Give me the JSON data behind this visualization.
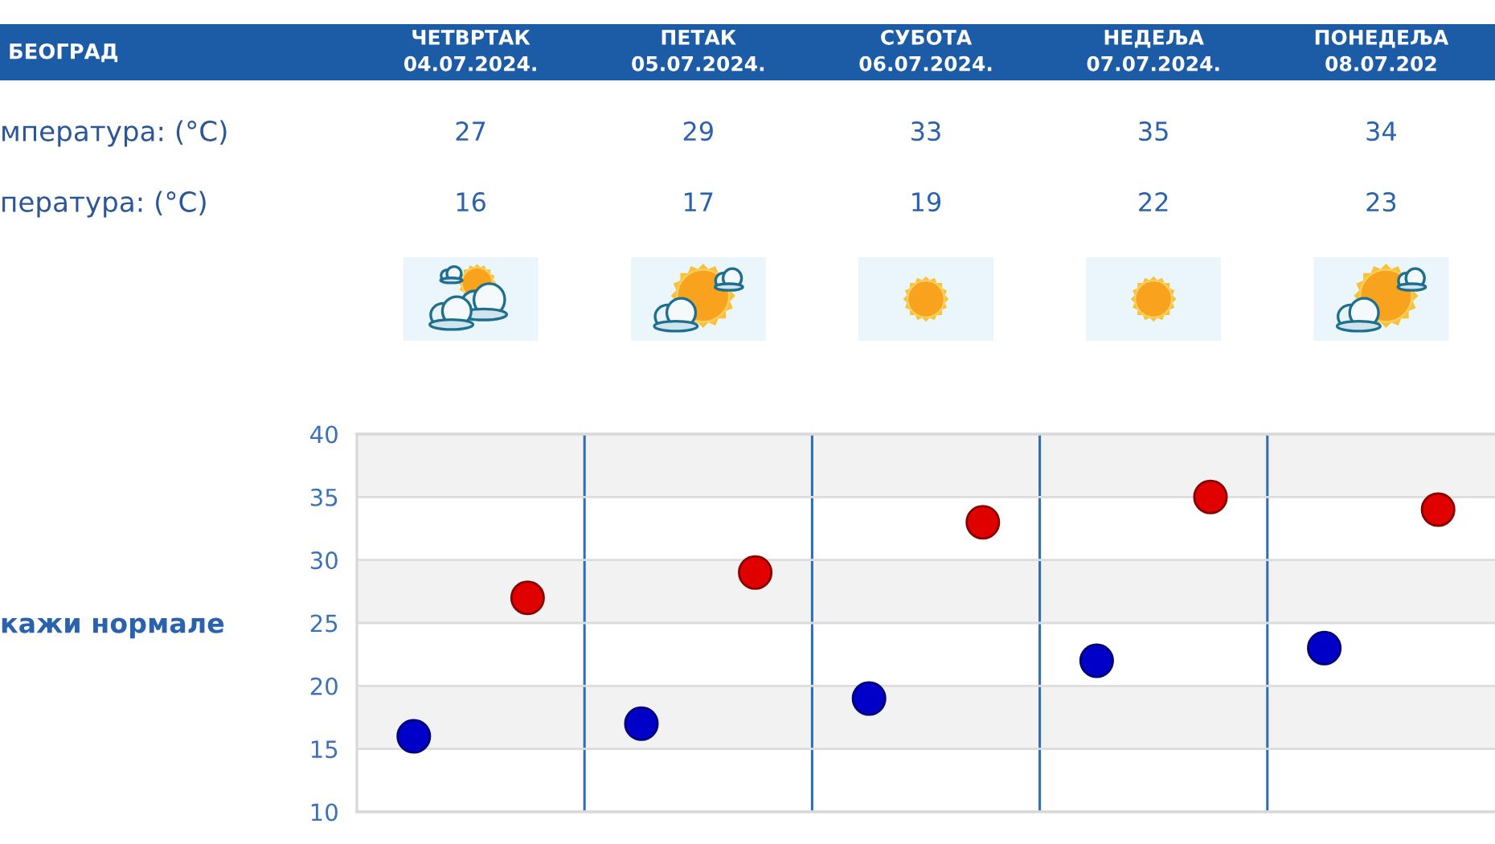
{
  "chart_data": {
    "type": "scatter",
    "title": "БЕОГРАД",
    "categories": [
      null,
      null,
      null,
      null,
      null
    ],
    "series": [
      {
        "color": "#e00000",
        "values": [
          27,
          29,
          33,
          35,
          34
        ]
      },
      {
        "color": "#0000c8",
        "values": [
          16,
          17,
          19,
          22,
          23
        ]
      }
    ],
    "data_labels": true,
    "ylim": [
      10,
      40
    ],
    "yticks": [
      10,
      15,
      20,
      25,
      30,
      35,
      40
    ],
    "grid": true,
    "marker": "circle",
    "bands": [
      {
        "axis": "y",
        "from": 35,
        "to": 40,
        "color": "#f2f2f2"
      },
      {
        "axis": "y",
        "from": 25,
        "to": 30,
        "color": "#f2f2f2"
      },
      {
        "axis": "y",
        "from": 15,
        "to": 20,
        "color": "#f2f2f2"
      }
    ],
    "annotations": [
      "ЧЕТВРТАК\n04.07.2024.",
      "ПЕТАК\n05.07.2024.",
      "СУБОТА\n06.07.2024.",
      "НЕДЕЉА\n07.07.2024.",
      "ПОНЕДЕЉА\n08.07.202",
      "мпература: (°C)",
      "пература: (°C)",
      "кажи нормале"
    ]
  }
}
